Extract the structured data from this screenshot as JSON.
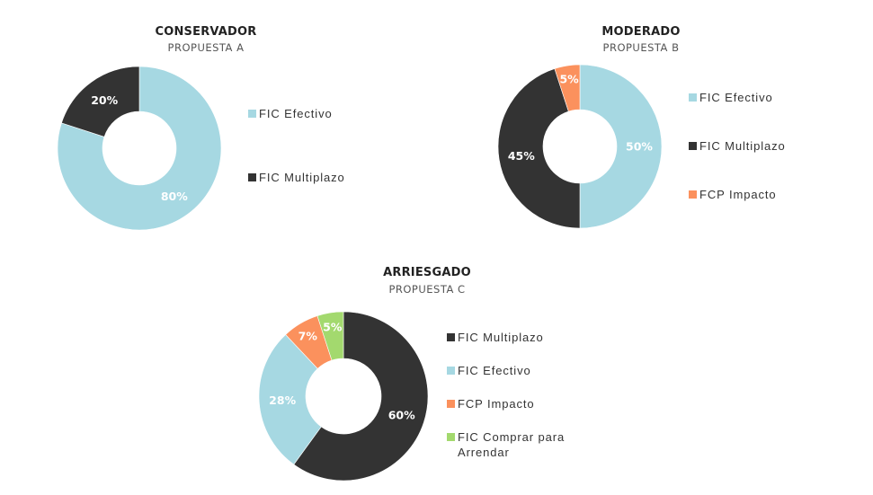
{
  "colors": {
    "fic_efectivo": "#a6d8e2",
    "fic_multiplazo": "#333333",
    "fcp_impacto": "#fb915d",
    "fic_comprar_para_arrendar": "#a3d96e"
  },
  "charts": [
    {
      "title": "CONSERVADOR",
      "subtitle": "PROPUESTA A",
      "legend": [
        "FIC Efectivo",
        "FIC Multiplazo"
      ],
      "labels": [
        "80%",
        "20%"
      ]
    },
    {
      "title": "MODERADO",
      "subtitle": "PROPUESTA B",
      "legend": [
        "FIC Efectivo",
        "FIC Multiplazo",
        "FCP Impacto"
      ],
      "labels": [
        "50%",
        "45%",
        "5%"
      ]
    },
    {
      "title": "ARRIESGADO",
      "subtitle": "PROPUESTA C",
      "legend": [
        "FIC Multiplazo",
        "FIC Efectivo",
        "FCP Impacto",
        "FIC Comprar para Arrendar"
      ],
      "labels": [
        "60%",
        "28%",
        "7%",
        "5%"
      ]
    }
  ],
  "chart_data": [
    {
      "type": "pie",
      "title": "CONSERVADOR",
      "subtitle": "PROPUESTA A",
      "donut": true,
      "categories": [
        "FIC Efectivo",
        "FIC Multiplazo"
      ],
      "values": [
        80,
        20
      ],
      "colors": [
        "#a6d8e2",
        "#333333"
      ],
      "legend_position": "right"
    },
    {
      "type": "pie",
      "title": "MODERADO",
      "subtitle": "PROPUESTA B",
      "donut": true,
      "categories": [
        "FIC Efectivo",
        "FIC Multiplazo",
        "FCP Impacto"
      ],
      "values": [
        50,
        45,
        5
      ],
      "colors": [
        "#a6d8e2",
        "#333333",
        "#fb915d"
      ],
      "legend_position": "right"
    },
    {
      "type": "pie",
      "title": "ARRIESGADO",
      "subtitle": "PROPUESTA C",
      "donut": true,
      "categories": [
        "FIC Multiplazo",
        "FIC Efectivo",
        "FCP Impacto",
        "FIC Comprar para Arrendar"
      ],
      "values": [
        60,
        28,
        7,
        5
      ],
      "colors": [
        "#333333",
        "#a6d8e2",
        "#fb915d",
        "#a3d96e"
      ],
      "legend_position": "right"
    }
  ]
}
